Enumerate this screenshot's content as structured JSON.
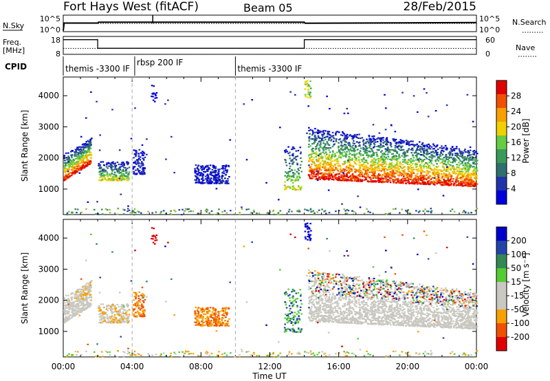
{
  "header": {
    "title": "Fort Hays West (fitACF)",
    "beam": "Beam 05",
    "date": "28/Feb/2015"
  },
  "top_panels": {
    "nsky_label": "N.Sky",
    "nsearch_label": "N.Search",
    "freq_label": "Freq.",
    "freq_unit": "[MHz]",
    "nave_label": "Nave",
    "cpid_label": "CPID",
    "nsky_ticks": [
      "10^5",
      "10^0"
    ],
    "nsearch_ticks": [
      "10^5",
      "10^0"
    ],
    "freq_ticks": [
      "18",
      "8"
    ],
    "nave_ticks": [
      "60",
      "0"
    ]
  },
  "cpid_segments": [
    {
      "start_h": 0,
      "label": "themis -3300 IF"
    },
    {
      "start_h": 4.15,
      "label": "rbsp 200 IF"
    },
    {
      "start_h": 10.0,
      "label": "themis -3300 IF"
    }
  ],
  "colors": {
    "power_scale": [
      "#0000dd",
      "#2233aa",
      "#2f6f6f",
      "#3a9a5a",
      "#66cc44",
      "#f0d000",
      "#f8a000",
      "#f05000",
      "#e00000"
    ],
    "velocity_scale": [
      "#e00000",
      "#f05000",
      "#f8a000",
      "#c8c8c0",
      "#c8c8c0",
      "#55cc33",
      "#338855",
      "#2244aa",
      "#0000cc"
    ],
    "ground_scatter": "#c8c8c0"
  },
  "chart_data": [
    {
      "type": "line",
      "panel": "N.Sky / N.Search",
      "ylabel": "N.Sky",
      "y2label": "N.Search",
      "yscale": "log",
      "ylim": [
        1,
        100000
      ],
      "x": [
        0.0,
        0.05,
        2.0,
        2.05,
        14.0,
        14.05,
        24.0
      ],
      "series": [
        {
          "name": "N.Sky",
          "values": [
            2,
            400,
            400,
            700,
            700,
            350,
            600
          ]
        },
        {
          "name": "N.Search",
          "values": [
            300,
            300,
            300,
            300,
            300,
            300,
            300
          ]
        }
      ]
    },
    {
      "type": "line",
      "panel": "Freq / Nave",
      "ylabel": "Freq. [MHz]",
      "y2label": "Nave",
      "ylim": [
        8,
        18
      ],
      "y2lim": [
        0,
        60
      ],
      "x": [
        0.0,
        2.0,
        2.0,
        14.0,
        14.0,
        24.0
      ],
      "series": [
        {
          "name": "Freq.",
          "values": [
            16.2,
            16.2,
            11.4,
            11.4,
            16.2,
            16.2
          ]
        },
        {
          "name": "Nave",
          "values": [
            20,
            20,
            20,
            20,
            20,
            20
          ]
        }
      ]
    },
    {
      "type": "heatmap",
      "panel": "Power",
      "ylabel": "Slant Range [km]",
      "colorbar_label": "Power [dB]",
      "colorbar_ticks": [
        "4",
        "8",
        "12",
        "16",
        "20",
        "24",
        "28"
      ],
      "xlim": [
        0,
        24
      ],
      "ylim": [
        180,
        4600
      ],
      "yticks": [
        "1000",
        "2000",
        "3000",
        "4000"
      ],
      "regions": [
        {
          "t0": 0.0,
          "t1": 1.6,
          "r0": 1250,
          "r1": 2400,
          "level": "high"
        },
        {
          "t0": 2.0,
          "t1": 3.8,
          "r0": 1300,
          "r1": 1900,
          "level": "mid"
        },
        {
          "t0": 4.0,
          "t1": 4.7,
          "r0": 1500,
          "r1": 2300,
          "level": "low"
        },
        {
          "t0": 7.6,
          "t1": 9.6,
          "r0": 1200,
          "r1": 1800,
          "level": "low"
        },
        {
          "t0": 12.8,
          "t1": 13.8,
          "r0": 1000,
          "r1": 2400,
          "level": "mid"
        },
        {
          "t0": 14.2,
          "t1": 24.0,
          "r0": 1050,
          "r1": 3000,
          "level": "high"
        }
      ]
    },
    {
      "type": "heatmap",
      "panel": "Velocity",
      "ylabel": "Slant Range [km]",
      "colorbar_label": "Velocity [m s⁻¹]",
      "colorbar_ticks": [
        "200",
        "100",
        "50",
        "15",
        "-15",
        "-50",
        "-100",
        "-200"
      ],
      "xlim": [
        0,
        24
      ],
      "ylim": [
        180,
        4600
      ],
      "yticks": [
        "1000",
        "2000",
        "3000",
        "4000"
      ],
      "xlabel": "Time UT",
      "xticks": [
        "00:00",
        "04:00",
        "08:00",
        "12:00",
        "16:00",
        "20:00",
        "00:00"
      ]
    }
  ]
}
